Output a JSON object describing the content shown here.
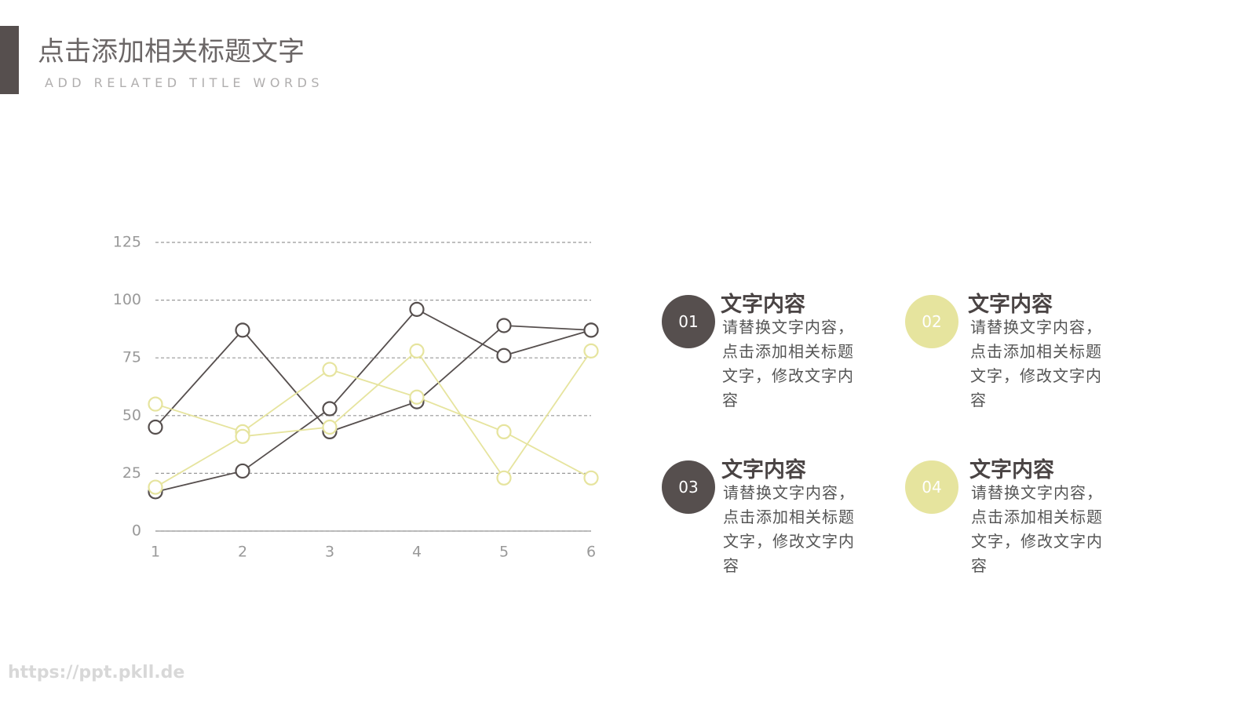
{
  "header": {
    "title": "点击添加相关标题文字",
    "subtitle": "ADD RELATED TITLE WORDS"
  },
  "chart_data": {
    "type": "line",
    "x": [
      1,
      2,
      3,
      4,
      5,
      6
    ],
    "xlim": [
      1,
      6
    ],
    "xticks": [
      1,
      2,
      3,
      4,
      5,
      6
    ],
    "ylim": [
      0,
      125
    ],
    "yticks": [
      0,
      25,
      50,
      75,
      100,
      125
    ],
    "grid": true,
    "series": [
      {
        "color": "#564f4e",
        "values": [
          45,
          87,
          43,
          56,
          89,
          87
        ]
      },
      {
        "color": "#564f4e",
        "values": [
          17,
          26,
          53,
          96,
          76,
          87
        ]
      },
      {
        "color": "#e6e49e",
        "values": [
          55,
          43,
          70,
          58,
          43,
          23
        ]
      },
      {
        "color": "#e6e49e",
        "values": [
          19,
          41,
          45,
          78,
          23,
          78
        ]
      }
    ]
  },
  "items": [
    {
      "number": "01",
      "title": "文字内容",
      "text": "请替换文字内容，点击添加相关标题文字，修改文字内容"
    },
    {
      "number": "02",
      "title": "文字内容",
      "text": "请替换文字内容，点击添加相关标题文字，修改文字内容"
    },
    {
      "number": "03",
      "title": "文字内容",
      "text": "请替换文字内容，点击添加相关标题文字，修改文字内容"
    },
    {
      "number": "04",
      "title": "文字内容",
      "text": "请替换文字内容，点击添加相关标题文字，修改文字内容"
    }
  ],
  "watermark": "https://ppt.pkll.de"
}
